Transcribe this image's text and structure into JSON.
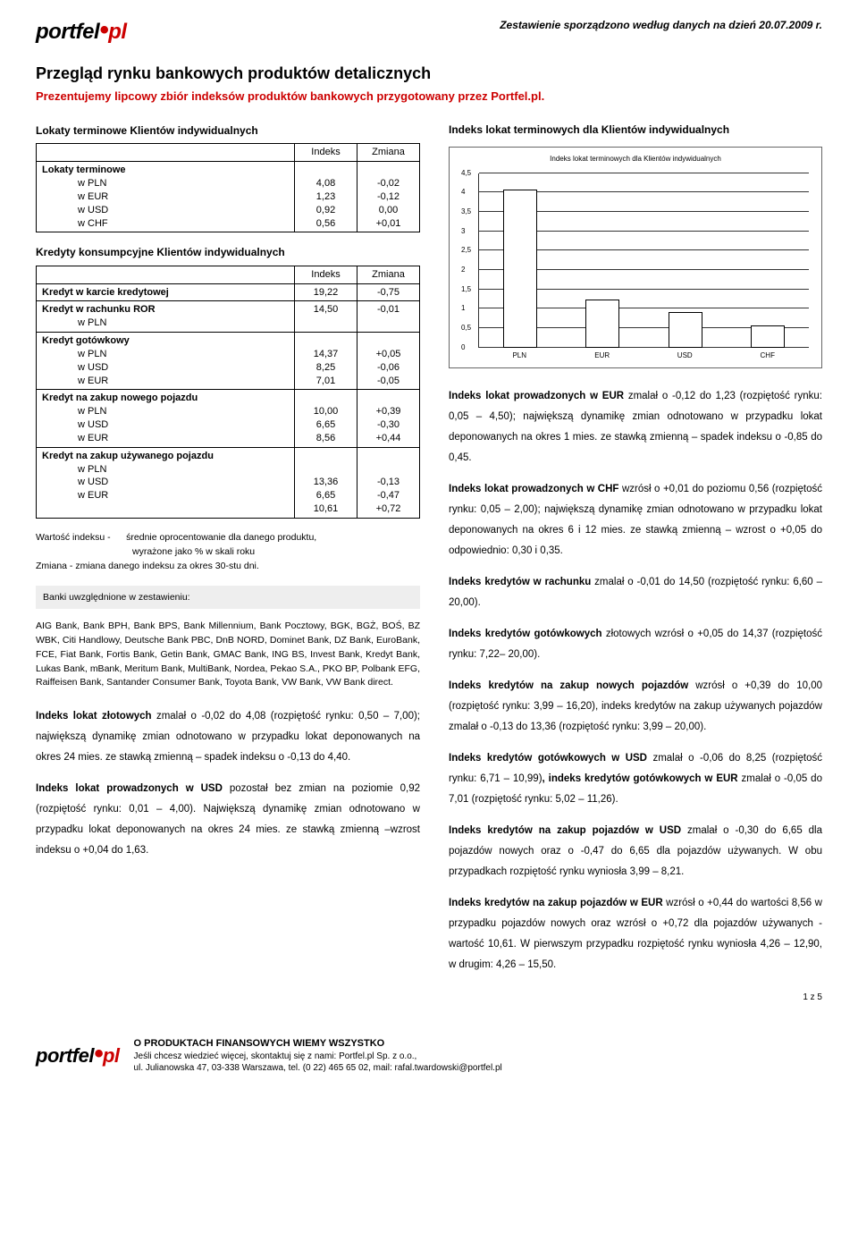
{
  "header": {
    "logo_part1": "portfel",
    "logo_part2": "pl",
    "date_note": "Zestawienie sporządzono według danych na dzień 20.07.2009 r."
  },
  "title": "Przegląd rynku bankowych produktów detalicznych",
  "subtitle": "Prezentujemy lipcowy zbiór indeksów produktów bankowych przygotowany przez Portfel.pl.",
  "table1": {
    "title": "Lokaty terminowe Klientów indywidualnych",
    "col_indeks": "Indeks",
    "col_zmiana": "Zmiana",
    "group_label": "Lokaty terminowe",
    "rows": [
      {
        "label": "w PLN",
        "indeks": "4,08",
        "zmiana": "-0,02"
      },
      {
        "label": "w EUR",
        "indeks": "1,23",
        "zmiana": "-0,12"
      },
      {
        "label": "w USD",
        "indeks": "0,92",
        "zmiana": "0,00"
      },
      {
        "label": "w CHF",
        "indeks": "0,56",
        "zmiana": "+0,01"
      }
    ]
  },
  "table2": {
    "title": "Kredyty konsumpcyjne Klientów indywidualnych",
    "col_indeks": "Indeks",
    "col_zmiana": "Zmiana",
    "r1": {
      "label": "Kredyt w karcie kredytowej",
      "indeks": "19,22",
      "zmiana": "-0,75"
    },
    "r2": {
      "label": "Kredyt w rachunku ROR",
      "sub": "w PLN",
      "indeks": "14,50",
      "zmiana": "-0,01"
    },
    "r3": {
      "label": "Kredyt gotówkowy",
      "subs": "w PLN\nw USD\nw EUR",
      "indeks": "14,37\n8,25\n7,01",
      "zmiana": "+0,05\n-0,06\n-0,05"
    },
    "r4": {
      "label": "Kredyt na zakup nowego pojazdu",
      "subs": "w PLN\nw USD\nw EUR",
      "indeks": "10,00\n6,65\n8,56",
      "zmiana": "+0,39\n-0,30\n+0,44"
    },
    "r5": {
      "label": "Kredyt na zakup używanego pojazdu",
      "subs": "w PLN\nw USD\nw EUR",
      "indeks": "13,36\n6,65\n10,61",
      "zmiana": "-0,13\n-0,47\n+0,72"
    }
  },
  "notes": {
    "l1": "Wartość indeksu -",
    "l1b": "średnie oprocentowanie dla danego produktu,",
    "l2": "wyrażone jako % w skali roku",
    "l3": "Zmiana - zmiana danego indeksu za okres 30-stu dni."
  },
  "banks_box": "Banki uwzględnione w zestawieniu:",
  "banks_list": "AIG Bank, Bank BPH, Bank BPS, Bank Millennium, Bank Pocztowy, BGK, BGŻ, BOŚ, BZ WBK, Citi Handlowy, Deutsche Bank PBC, DnB NORD, Dominet Bank, DZ Bank, EuroBank, FCE, Fiat Bank, Fortis Bank, Getin Bank, GMAC Bank, ING BS, Invest Bank, Kredyt Bank, Lukas Bank, mBank, Meritum Bank, MultiBank, Nordea, Pekao S.A., PKO BP, Polbank EFG, Raiffeisen Bank, Santander Consumer Bank, Toyota Bank, VW Bank, VW Bank direct.",
  "left_paras": [
    "<strong>Indeks lokat złotowych</strong> zmalał o -0,02 do 4,08 (rozpiętość rynku: 0,50 – 7,00); największą dynamikę zmian odnotowano w przypadku lokat deponowanych na okres 24 mies. ze stawką zmienną – spadek indeksu o -0,13 do 4,40.",
    "<strong>Indeks lokat prowadzonych w USD</strong> pozostał bez zmian na poziomie 0,92 (rozpiętość rynku: 0,01 – 4,00). Największą dynamikę zmian odnotowano w przypadku lokat deponowanych na okres 24 mies. ze stawką zmienną –wzrost indeksu o +0,04 do 1,63."
  ],
  "chart": {
    "section_title": "Indeks lokat terminowych dla Klientów indywidualnych",
    "inner_title": "Indeks lokat terminowych dla Klientów indywidualnych",
    "type": "bar",
    "categories": [
      "PLN",
      "EUR",
      "USD",
      "CHF"
    ],
    "values": [
      4.08,
      1.23,
      0.92,
      0.56
    ],
    "ytick_labels": [
      "0",
      "0,5",
      "1",
      "1,5",
      "2",
      "2,5",
      "3",
      "3,5",
      "4",
      "4,5"
    ],
    "ymax": 4.5,
    "bar_fill": "#ffffff",
    "bar_border": "#000000",
    "grid_color": "#333333",
    "background_color": "#ffffff",
    "font_size_pt": 7
  },
  "right_paras": [
    "<strong>Indeks lokat prowadzonych w EUR</strong> zmalał o -0,12 do 1,23 (rozpiętość rynku: 0,05 – 4,50); największą dynamikę zmian odnotowano w przypadku lokat deponowanych na okres 1 mies. ze stawką zmienną – spadek indeksu o -0,85 do 0,45.",
    "<strong>Indeks lokat prowadzonych w CHF</strong> wzrósł o +0,01 do poziomu 0,56 (rozpiętość rynku: 0,05 – 2,00); największą dynamikę zmian odnotowano w przypadku lokat deponowanych na okres 6 i 12 mies. ze stawką zmienną – wzrost o +0,05 do odpowiednio: 0,30 i 0,35.",
    "<strong>Indeks kredytów w rachunku</strong> zmalał o -0,01 do 14,50 (rozpiętość rynku: 6,60 – 20,00).",
    "<strong>Indeks kredytów gotówkowych</strong> złotowych wzrósł o +0,05 do 14,37 (rozpiętość rynku: 7,22– 20,00).",
    "<strong>Indeks kredytów na zakup nowych pojazdów</strong> wzrósł o +0,39 do 10,00 (rozpiętość rynku: 3,99 – 16,20), indeks kredytów na zakup używanych pojazdów zmalał o -0,13 do 13,36 (rozpiętość rynku: 3,99 – 20,00).",
    "<strong>Indeks kredytów gotówkowych w USD</strong> zmalał o -0,06 do 8,25 (rozpiętość rynku: 6,71 – 10,99)<strong>, indeks kredytów gotówkowych w EUR</strong> zmalał o -0,05 do 7,01 (rozpiętość rynku: 5,02 – 11,26).",
    "<strong>Indeks kredytów na zakup pojazdów w USD</strong> zmalał o -0,30 do 6,65 dla pojazdów nowych oraz o -0,47 do 6,65 dla pojazdów używanych. W obu przypadkach rozpiętość rynku wyniosła 3,99 – 8,21.",
    "<strong>Indeks kredytów na zakup pojazdów w EUR</strong> wzrósł o +0,44 do wartości 8,56 w przypadku pojazdów nowych oraz wzrósł o +0,72 dla pojazdów używanych - wartość 10,61. W pierwszym przypadku rozpiętość rynku wyniosła 4,26 – 12,90, w drugim: 4,26 – 15,50."
  ],
  "footer": {
    "title": "O PRODUKTACH FINANSOWYCH WIEMY WSZYSTKO",
    "line1": "Jeśli chcesz wiedzieć więcej, skontaktuj się z nami: Portfel.pl Sp. z o.o.,",
    "line2": "ul. Julianowska 47, 03-338 Warszawa, tel. (0 22) 465 65 02, mail: rafal.twardowski@portfel.pl",
    "page": "1 z 5"
  }
}
